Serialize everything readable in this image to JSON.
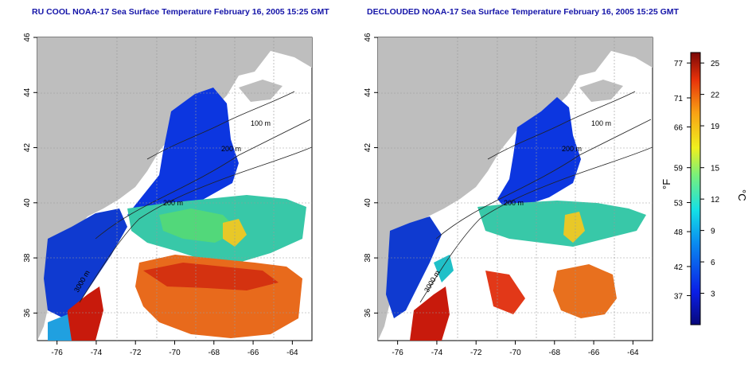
{
  "panels": [
    {
      "title": "RU COOL NOAA-17 Sea Surface Temperature February 16, 2005 15:25 GMT",
      "contour_labels": [
        "100 m",
        "200 m",
        "200 m",
        "3000 m"
      ]
    },
    {
      "title": "DECLOUDED NOAA-17 Sea Surface Temperature February 16, 2005 15:25 GMT",
      "contour_labels": [
        "100 m",
        "200 m",
        "200 m",
        "3000 m"
      ]
    }
  ],
  "axes": {
    "lon_ticks": [
      "-76",
      "-74",
      "-72",
      "-70",
      "-68",
      "-66",
      "-64"
    ],
    "lat_ticks": [
      "46",
      "44",
      "42",
      "40",
      "38",
      "36"
    ]
  },
  "colorbar": {
    "f_label": "°F",
    "c_label": "°C",
    "f_ticks": [
      "77",
      "71",
      "66",
      "59",
      "53",
      "48",
      "42",
      "37"
    ],
    "c_ticks": [
      "25",
      "22",
      "19",
      "15",
      "12",
      "9",
      "6",
      "3"
    ],
    "range_c": [
      0,
      26
    ]
  },
  "colors": {
    "land": "#bebebe",
    "title": "#1414a8",
    "cold": "#0a2fd8",
    "warm": "#d01a0a"
  }
}
